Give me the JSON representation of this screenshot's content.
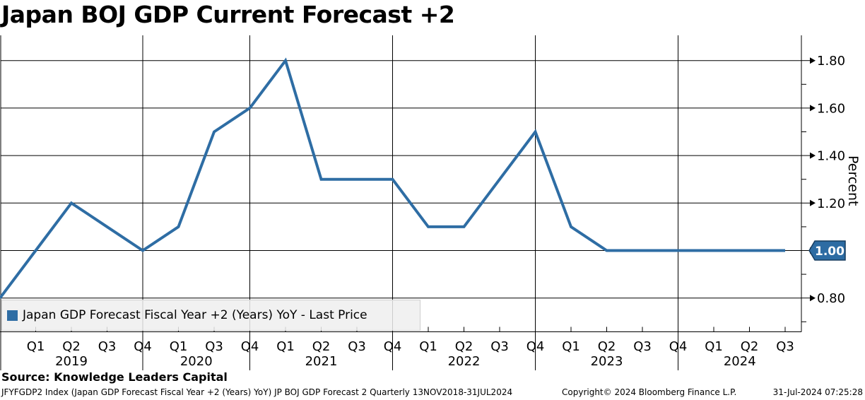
{
  "title": "Japan BOJ GDP Current Forecast +2",
  "y_axis_title": "Percent",
  "legend": {
    "label": "Japan GDP Forecast Fiscal Year +2 (Years) YoY - Last Price",
    "marker_color": "#2e6da4"
  },
  "last_price_tag": {
    "label": "1.00",
    "color": "#2d6ca3"
  },
  "source_line": "Source: Knowledge Leaders Capital",
  "footer": {
    "security_info": "JFYFGDP2 Index (Japan GDP Forecast Fiscal Year +2 (Years) YoY) JP BOJ GDP Forecast 2  Quarterly 13NOV2018-31JUL2024",
    "copyright": "Copyright© 2024 Bloomberg Finance L.P.",
    "timestamp": "31-Jul-2024 07:25:28"
  },
  "chart_data": {
    "type": "line",
    "title": "Japan BOJ GDP Current Forecast +2",
    "ylabel": "Percent",
    "grid": true,
    "legend_position": "bottom-left",
    "line_color": "#2e6da4",
    "ylim": [
      0.66,
      1.87
    ],
    "series": [
      {
        "name": "Japan GDP Forecast Fiscal Year +2 (Years) YoY - Last Price",
        "points": [
          {
            "period": "Q4 2018",
            "value": 0.8
          },
          {
            "period": "Q1 2019",
            "value": 1.0
          },
          {
            "period": "Q2 2019",
            "value": 1.2
          },
          {
            "period": "Q3 2019",
            "value": 1.1
          },
          {
            "period": "Q4 2019",
            "value": 1.0
          },
          {
            "period": "Q1 2020",
            "value": 1.1
          },
          {
            "period": "Q3 2020",
            "value": 1.5
          },
          {
            "period": "Q4 2020",
            "value": 1.6
          },
          {
            "period": "Q1 2021",
            "value": 1.8
          },
          {
            "period": "Q2 2021",
            "value": 1.3
          },
          {
            "period": "Q3 2021",
            "value": 1.3
          },
          {
            "period": "Q4 2021",
            "value": 1.3
          },
          {
            "period": "Q1 2022",
            "value": 1.1
          },
          {
            "period": "Q2 2022",
            "value": 1.1
          },
          {
            "period": "Q3 2022",
            "value": 1.3
          },
          {
            "period": "Q4 2022",
            "value": 1.5
          },
          {
            "period": "Q1 2023",
            "value": 1.1
          },
          {
            "period": "Q2 2023",
            "value": 1.0
          },
          {
            "period": "Q3 2023",
            "value": 1.0
          },
          {
            "period": "Q4 2023",
            "value": 1.0
          },
          {
            "period": "Q1 2024",
            "value": 1.0
          },
          {
            "period": "Q2 2024",
            "value": 1.0
          },
          {
            "period": "Q3 2024",
            "value": 1.0
          }
        ]
      }
    ],
    "x_axis": {
      "year_groups": [
        {
          "year": "2019",
          "quarters": [
            "Q1",
            "Q2",
            "Q3",
            "Q4"
          ]
        },
        {
          "year": "2020",
          "quarters": [
            "Q1",
            "Q3",
            "Q4"
          ]
        },
        {
          "year": "2021",
          "quarters": [
            "Q1",
            "Q2",
            "Q3",
            "Q4"
          ]
        },
        {
          "year": "2022",
          "quarters": [
            "Q1",
            "Q2",
            "Q3",
            "Q4"
          ]
        },
        {
          "year": "2023",
          "quarters": [
            "Q1",
            "Q2",
            "Q3",
            "Q4"
          ]
        },
        {
          "year": "2024",
          "quarters": [
            "Q1",
            "Q2",
            "Q3"
          ]
        }
      ]
    },
    "y_axis": {
      "major_ticks": [
        {
          "label": "1.80",
          "value": 1.8
        },
        {
          "label": "1.60",
          "value": 1.6
        },
        {
          "label": "1.40",
          "value": 1.4
        },
        {
          "label": "1.20",
          "value": 1.2
        },
        {
          "label": "1.00",
          "value": 1.0,
          "tagged": true
        },
        {
          "label": "0.80",
          "value": 0.8
        }
      ],
      "minor_ticks": [
        1.7,
        1.5,
        1.3,
        1.1,
        0.9,
        0.7
      ]
    }
  }
}
